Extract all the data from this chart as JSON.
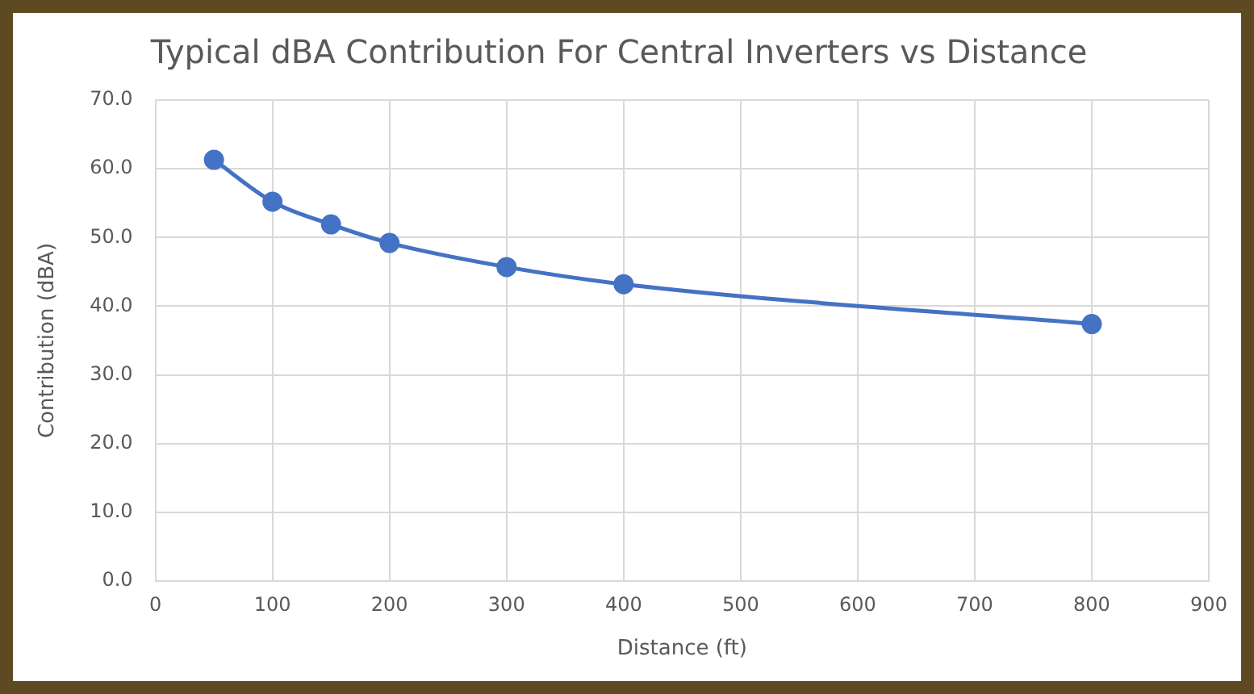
{
  "chart_data": {
    "type": "line",
    "title": "Typical dBA Contribution For Central Inverters vs Distance",
    "xlabel": "Distance (ft)",
    "ylabel": "Contribution (dBA)",
    "x": [
      50,
      100,
      150,
      200,
      300,
      400,
      800
    ],
    "series": [
      {
        "color": "#4472c4",
        "values": [
          61.3,
          55.2,
          51.9,
          49.2,
          45.7,
          43.2,
          37.4
        ]
      }
    ],
    "xlim": [
      0,
      900
    ],
    "xticks": [
      0,
      100,
      200,
      300,
      400,
      500,
      600,
      700,
      800,
      900
    ],
    "ylim": [
      0,
      70
    ],
    "yticks": [
      {
        "value": 0,
        "label": "0.0"
      },
      {
        "value": 10,
        "label": "10.0"
      },
      {
        "value": 20,
        "label": "20.0"
      },
      {
        "value": 30,
        "label": "30.0"
      },
      {
        "value": 40,
        "label": "40.0"
      },
      {
        "value": 50,
        "label": "50.0"
      },
      {
        "value": 60,
        "label": "60.0"
      },
      {
        "value": 70,
        "label": "70.0"
      }
    ],
    "grid": true,
    "marker": "circle",
    "line_style": "solid",
    "legend": false
  }
}
